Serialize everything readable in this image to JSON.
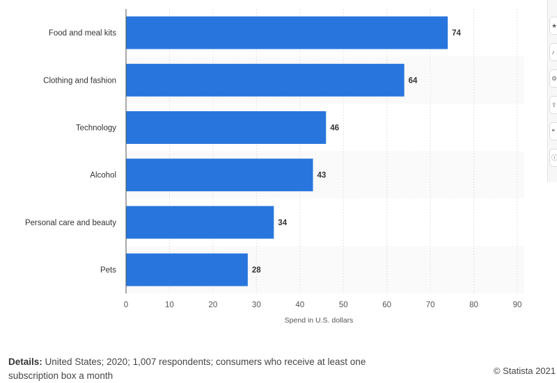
{
  "chart_data": {
    "type": "bar",
    "orientation": "horizontal",
    "categories": [
      "Food and meal kits",
      "Clothing and fashion",
      "Technology",
      "Alcohol",
      "Personal care and beauty",
      "Pets"
    ],
    "values": [
      74,
      64,
      46,
      43,
      34,
      28
    ],
    "xlabel": "Spend in U.S. dollars",
    "xlim": [
      0,
      90
    ],
    "ticks": [
      0,
      10,
      20,
      30,
      40,
      50,
      60,
      70,
      80,
      90
    ],
    "grid": true,
    "bar_color": "#2876dd"
  },
  "footer": {
    "details_label": "Details:",
    "details_text": "United States; 2020; 1,007 respondents; consumers who receive at least one subscription box a month",
    "copyright": "© Statista 2021"
  },
  "toolbar": {
    "icons": [
      "star-icon",
      "bell-icon",
      "settings-icon",
      "share-icon",
      "quote-icon",
      "info-icon"
    ]
  }
}
